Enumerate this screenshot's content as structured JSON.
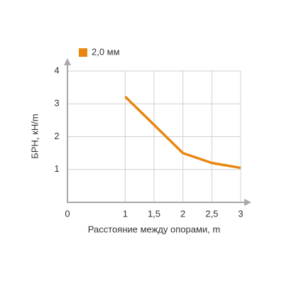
{
  "chart_data": {
    "type": "line",
    "x_label": "Расстояние между опорами, m",
    "y_label": "БРН, кН/m",
    "x": [
      1,
      1.5,
      2,
      2.5,
      3
    ],
    "series": [
      {
        "name": "2,0 мм",
        "color": "#e8860f",
        "values": [
          3.22,
          2.36,
          1.5,
          1.2,
          1.05
        ]
      }
    ],
    "xlim": [
      0,
      3
    ],
    "ylim": [
      0,
      4
    ],
    "xticks": [
      0,
      1,
      {
        "value": 1.5,
        "label": "1,5"
      },
      2,
      {
        "value": 2.5,
        "label": "2,5"
      },
      3
    ],
    "yticks": [
      1,
      2,
      3,
      4
    ],
    "grid": true,
    "legend": "top-left"
  }
}
